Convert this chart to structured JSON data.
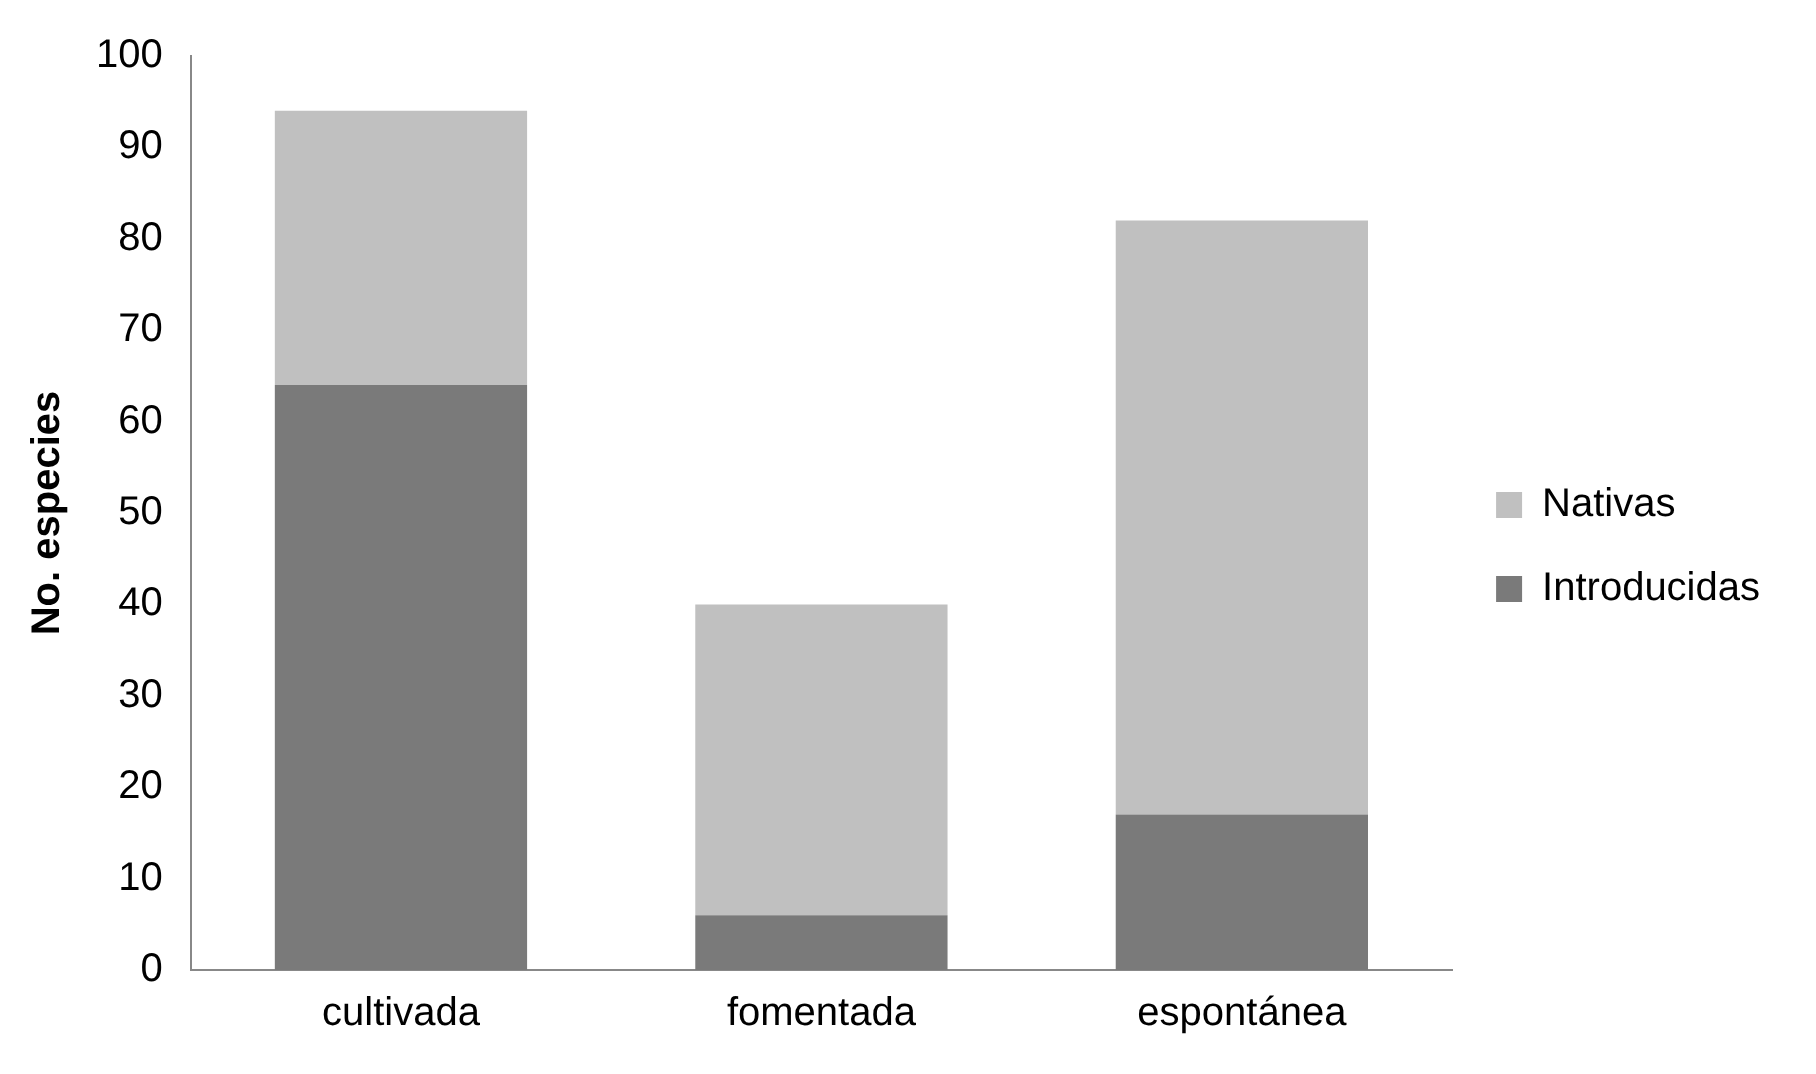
{
  "chart_data": {
    "type": "bar",
    "stacked": true,
    "ylabel": "No. especies",
    "categories": [
      "cultivada",
      "fomentada",
      "espontánea"
    ],
    "series": [
      {
        "name": "Introducidas",
        "color": "#7a7a7a",
        "values": [
          64,
          6,
          17
        ]
      },
      {
        "name": "Nativas",
        "color": "#c0c0c0",
        "values": [
          30,
          34,
          65
        ]
      }
    ],
    "ylim": [
      0,
      100
    ],
    "yticks": [
      0,
      10,
      20,
      30,
      40,
      50,
      60,
      70,
      80,
      90,
      100
    ],
    "grid": false,
    "legend": "right"
  }
}
